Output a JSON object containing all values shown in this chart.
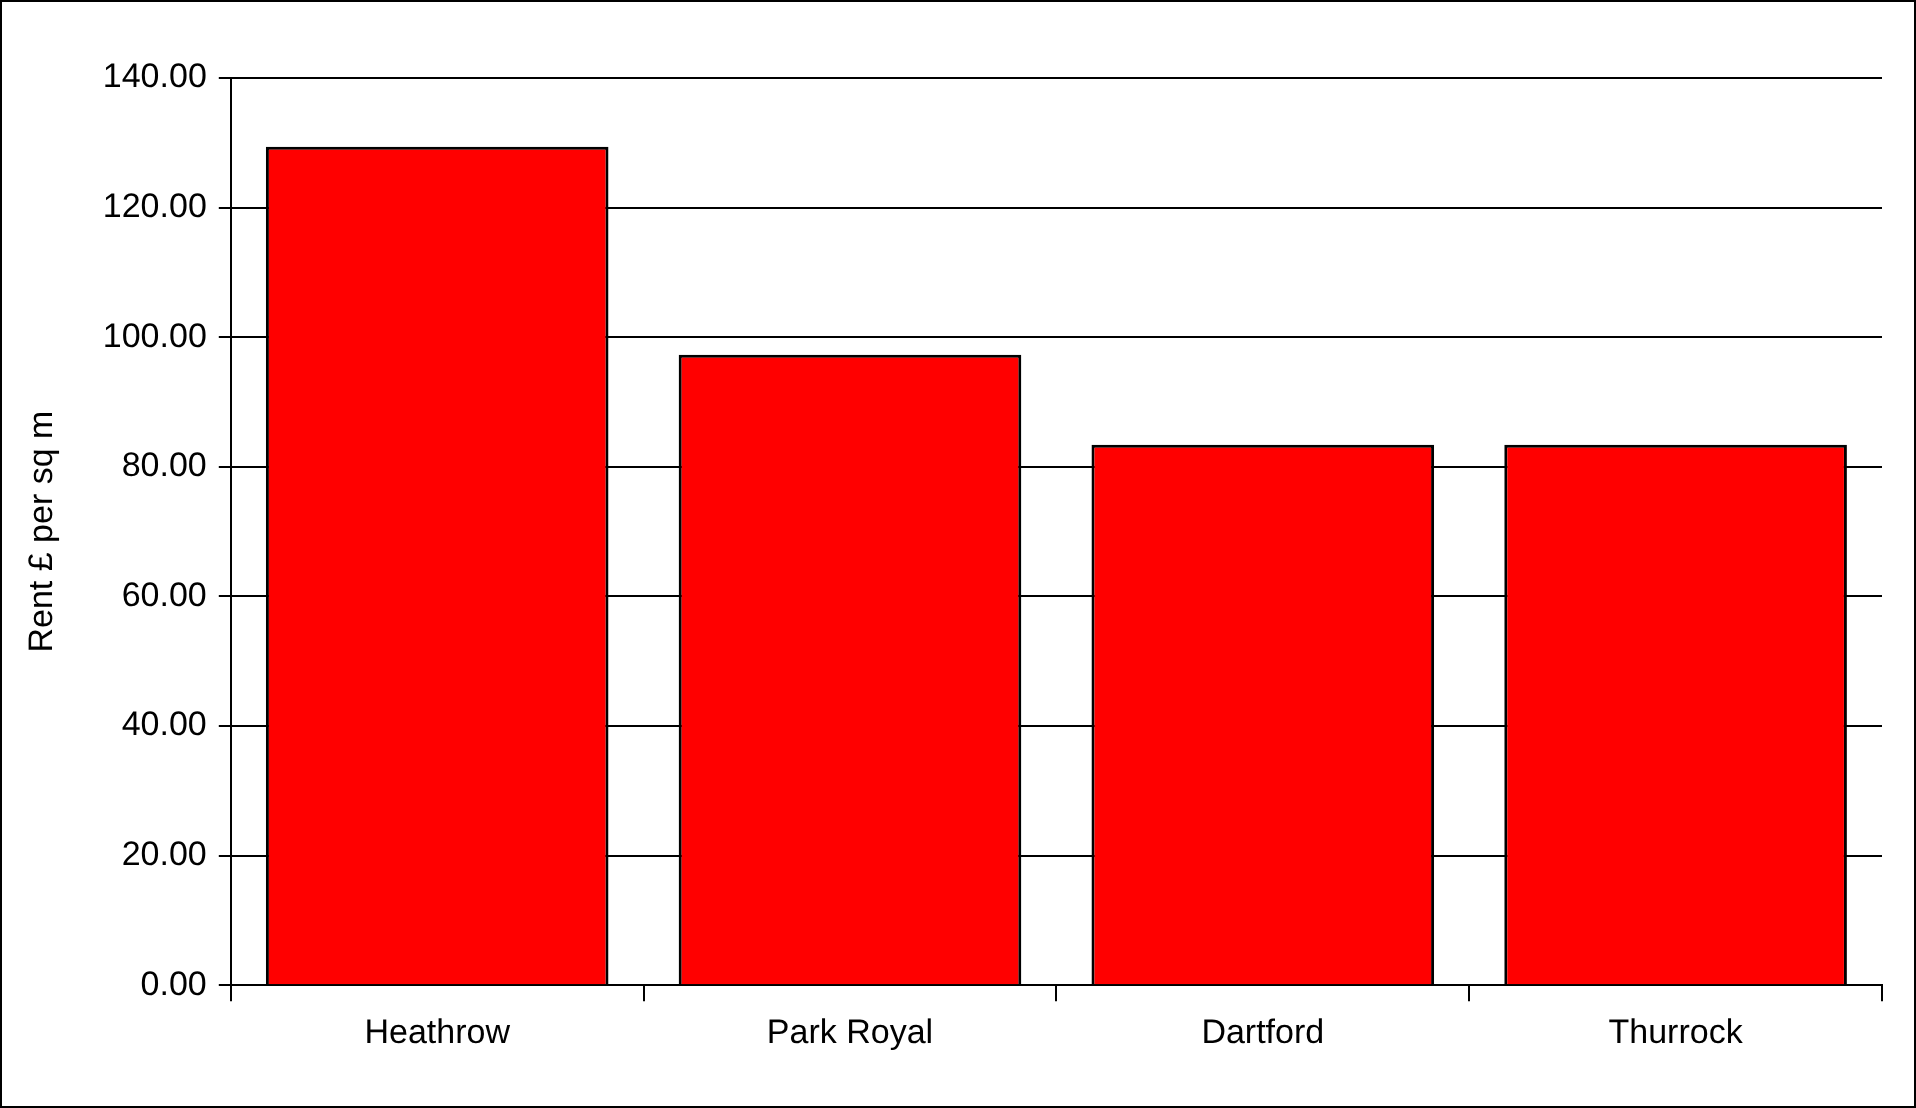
{
  "chart_data": {
    "type": "bar",
    "ylabel": "Rent £ per sq m",
    "categories": [
      "Heathrow",
      "Park Royal",
      "Dartford",
      "Thurrock"
    ],
    "values": [
      129.4,
      97.3,
      83.4,
      83.4
    ],
    "color": "#ff0000",
    "ylim": [
      0,
      140
    ],
    "yticks": [
      {
        "value": 0,
        "label": "0.00"
      },
      {
        "value": 20,
        "label": "20.00"
      },
      {
        "value": 40,
        "label": "40.00"
      },
      {
        "value": 60,
        "label": "60.00"
      },
      {
        "value": 80,
        "label": "80.00"
      },
      {
        "value": 100,
        "label": "100.00"
      },
      {
        "value": 120,
        "label": "120.00"
      },
      {
        "value": 140,
        "label": "140.00"
      }
    ],
    "grid": "y",
    "legend": false
  }
}
